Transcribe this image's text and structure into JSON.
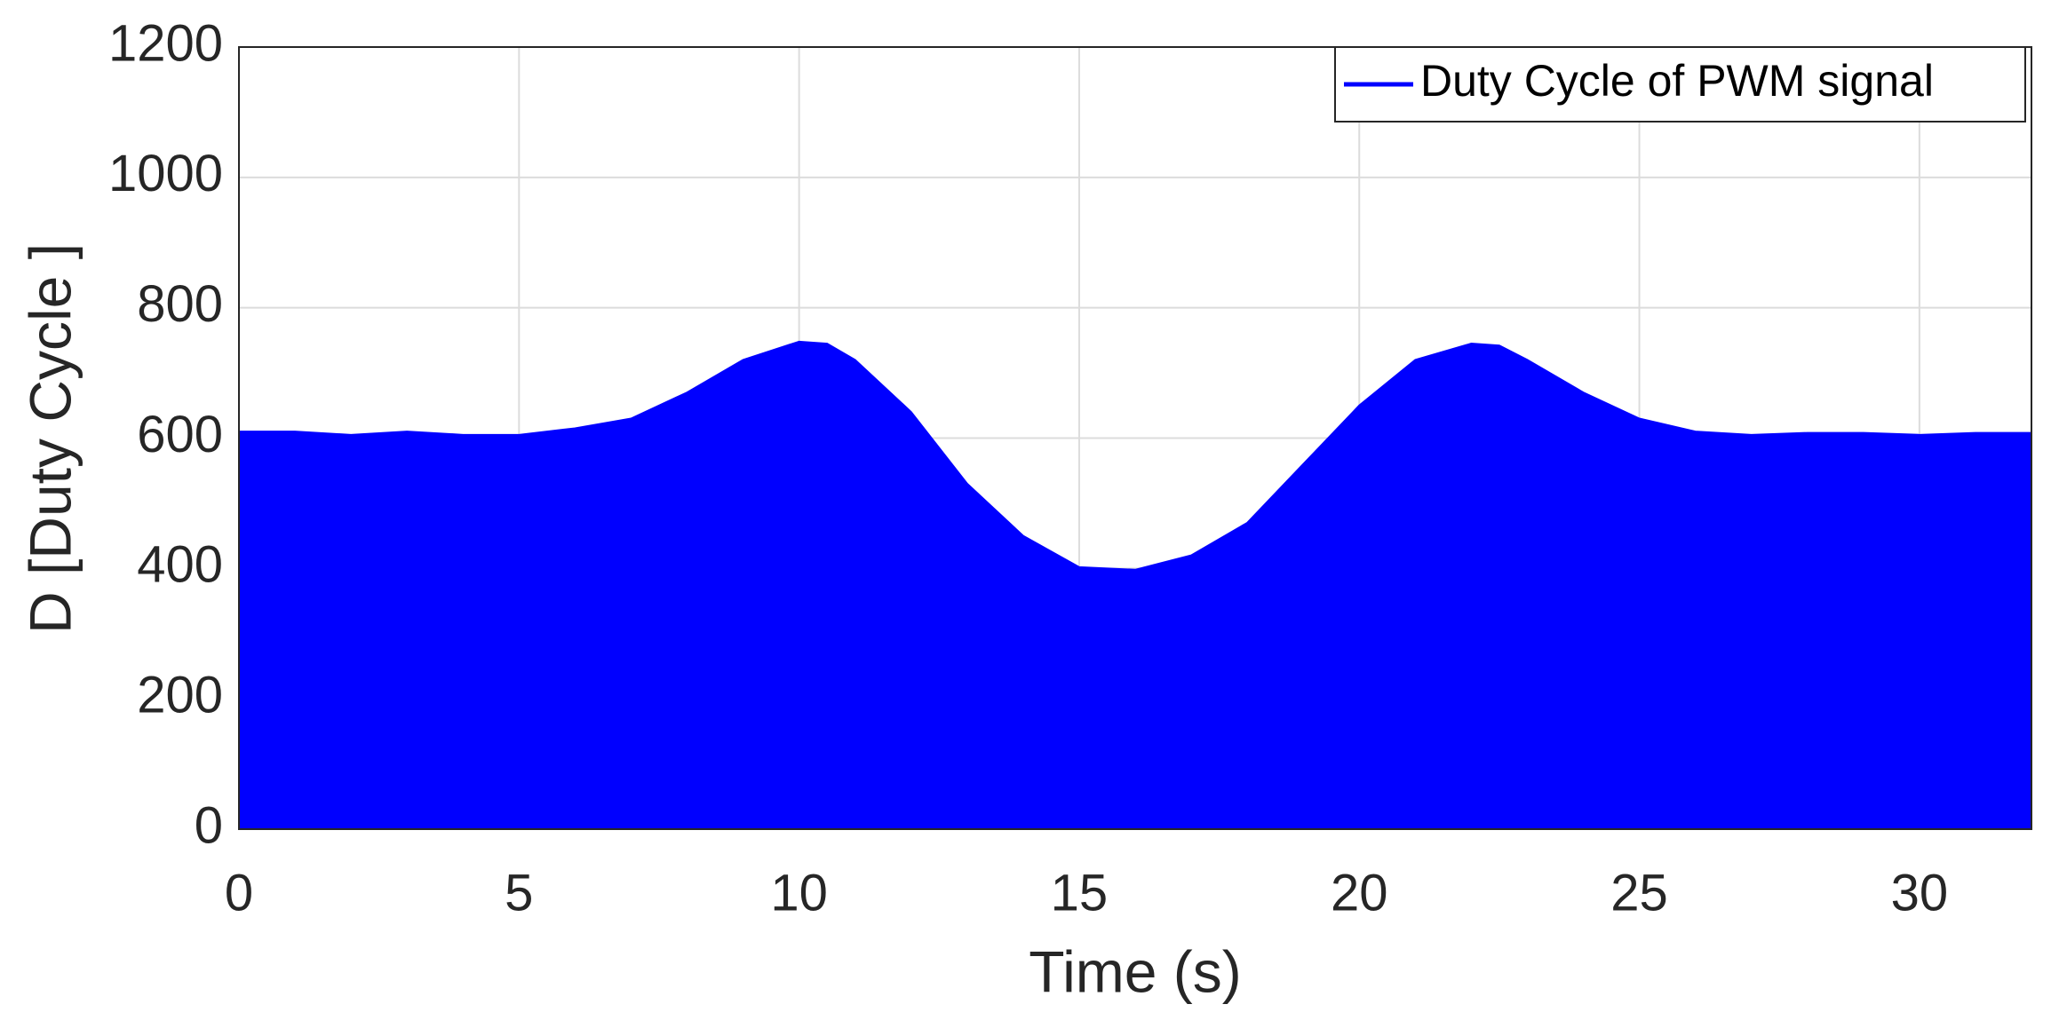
{
  "chart_data": {
    "type": "area",
    "xlabel": "Time (s)",
    "ylabel": "D [Duty Cycle ]",
    "x": [
      0,
      1,
      2,
      3,
      4,
      5,
      6,
      7,
      8,
      9,
      10,
      10.5,
      11,
      12,
      13,
      14,
      15,
      16,
      17,
      18,
      19,
      20,
      21,
      22,
      22.5,
      23,
      24,
      25,
      26,
      27,
      28,
      29,
      30,
      31,
      32
    ],
    "series": [
      {
        "name": "Duty Cycle of PWM signal",
        "color": "#0000ff",
        "values": [
          610,
          610,
          605,
          610,
          605,
          605,
          615,
          630,
          670,
          720,
          748,
          745,
          720,
          640,
          530,
          450,
          402,
          398,
          420,
          470,
          560,
          650,
          720,
          745,
          742,
          720,
          670,
          630,
          610,
          605,
          608,
          608,
          605,
          608,
          608
        ]
      }
    ],
    "xlim": [
      0,
      32
    ],
    "xticks": [
      0,
      5,
      10,
      15,
      20,
      25,
      30
    ],
    "ylim": [
      0,
      1200
    ],
    "yticks": [
      0,
      200,
      400,
      600,
      800,
      1000,
      1200
    ],
    "grid": true,
    "legend": "upper right"
  }
}
